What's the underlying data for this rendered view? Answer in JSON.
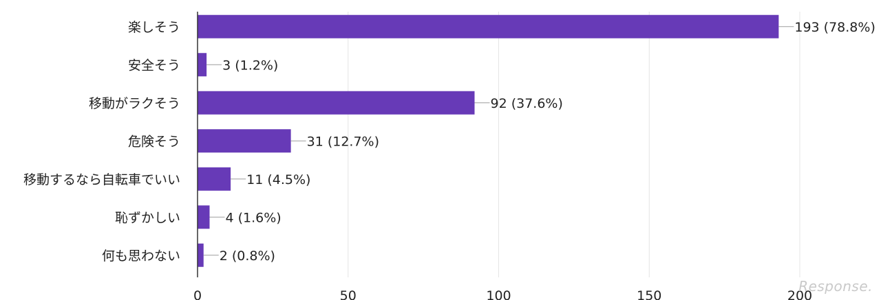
{
  "chart_data": {
    "type": "bar",
    "orientation": "horizontal",
    "categories": [
      "楽しそう",
      "安全そう",
      "移動がラクそう",
      "危険そう",
      "移動するなら自転車でいい",
      "恥ずかしい",
      "何も思わない"
    ],
    "values": [
      193,
      3,
      92,
      31,
      11,
      4,
      2
    ],
    "data_labels": [
      "193 (78.8%)",
      "3 (1.2%)",
      "92 (37.6%)",
      "31 (12.7%)",
      "11 (4.5%)",
      "4 (1.6%)",
      "2 (0.8%)"
    ],
    "xlim": [
      0,
      200
    ],
    "xticks": [
      0,
      50,
      100,
      150,
      200
    ],
    "grid": true,
    "bar_color": "#673ab7",
    "title": "",
    "xlabel": "",
    "ylabel": ""
  },
  "watermark": {
    "text": "Response."
  }
}
